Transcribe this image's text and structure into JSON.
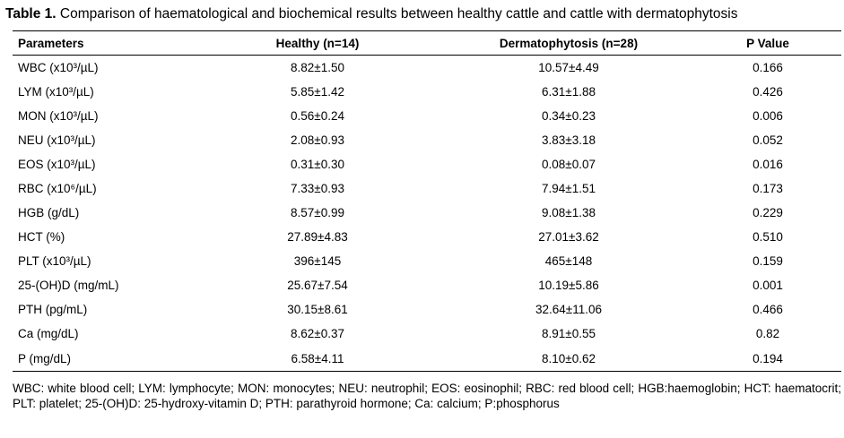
{
  "caption": {
    "label": "Table 1.",
    "text": " Comparison of haematological and biochemical results between healthy cattle and cattle with dermatophytosis"
  },
  "table": {
    "headers": [
      "Parameters",
      "Healthy (n=14)",
      "Dermatophytosis (n=28)",
      "P Value"
    ],
    "rows": [
      [
        "WBC (x10³/µL)",
        "8.82±1.50",
        "10.57±4.49",
        "0.166"
      ],
      [
        "LYM (x10³/µL)",
        "5.85±1.42",
        "6.31±1.88",
        "0.426"
      ],
      [
        "MON (x10³/µL)",
        "0.56±0.24",
        "0.34±0.23",
        "0.006"
      ],
      [
        "NEU (x10³/µL)",
        "2.08±0.93",
        "3.83±3.18",
        "0.052"
      ],
      [
        "EOS (x10³/µL)",
        "0.31±0.30",
        "0.08±0.07",
        "0.016"
      ],
      [
        "RBC (x10⁶/µL)",
        "7.33±0.93",
        "7.94±1.51",
        "0.173"
      ],
      [
        "HGB (g/dL)",
        "8.57±0.99",
        "9.08±1.38",
        "0.229"
      ],
      [
        "HCT (%)",
        "27.89±4.83",
        "27.01±3.62",
        "0.510"
      ],
      [
        "PLT (x10³/µL)",
        "396±145",
        "465±148",
        "0.159"
      ],
      [
        "25-(OH)D (mg/mL)",
        "25.67±7.54",
        "10.19±5.86",
        "0.001"
      ],
      [
        "PTH (pg/mL)",
        "30.15±8.61",
        "32.64±11.06",
        "0.466"
      ],
      [
        "Ca (mg/dL)",
        "8.62±0.37",
        "8.91±0.55",
        "0.82"
      ],
      [
        "P (mg/dL)",
        "6.58±4.11",
        "8.10±0.62",
        "0.194"
      ]
    ]
  },
  "footnote": "WBC: white blood cell; LYM: lymphocyte; MON: monocytes; NEU: neutrophil; EOS: eosinophil; RBC: red blood cell; HGB:haemoglobin; HCT: haematocrit; PLT: platelet; 25-(OH)D: 25-hydroxy-vitamin D; PTH: parathyroid hormone; Ca: calcium; P:phosphorus"
}
